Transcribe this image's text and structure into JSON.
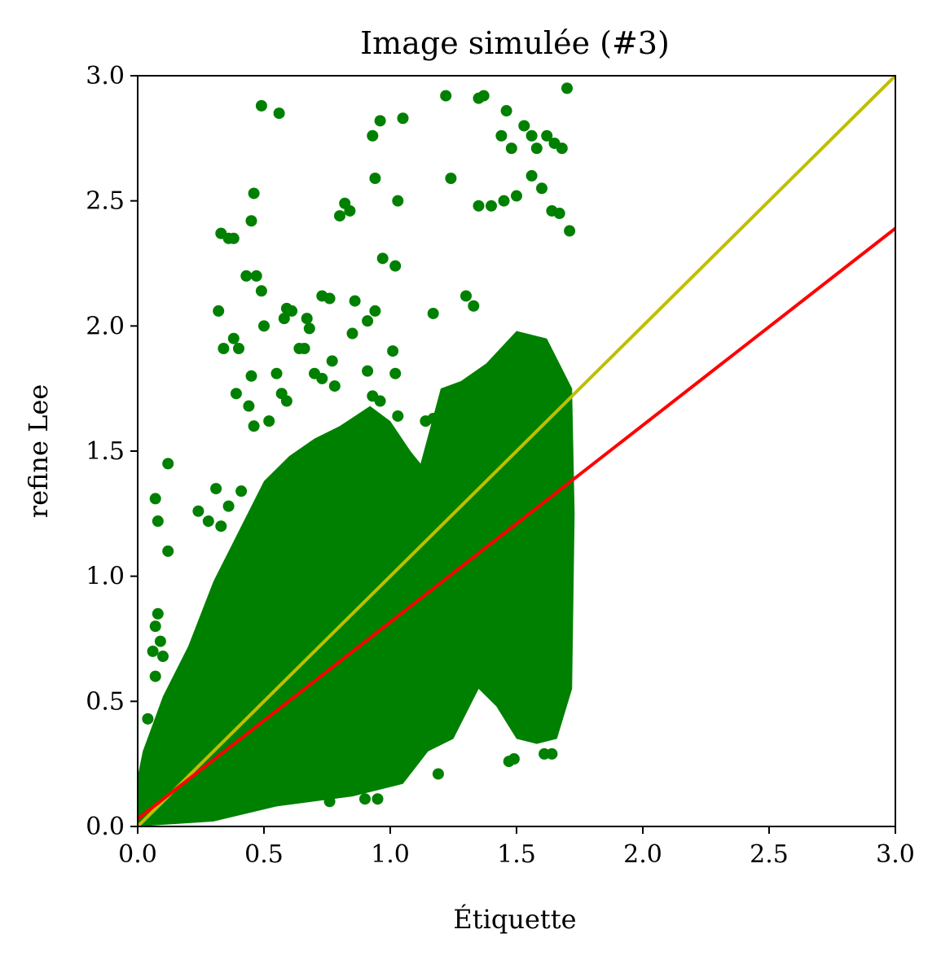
{
  "chart_data": {
    "type": "scatter",
    "title": "Image simulée (#3)",
    "xlabel": "Étiquette",
    "ylabel": "refine Lee",
    "xlim": [
      0,
      3
    ],
    "ylim": [
      0,
      3
    ],
    "x_ticks": [
      0,
      0.5,
      1,
      1.5,
      2,
      2.5,
      3
    ],
    "x_tick_labels": [
      "0.0",
      "0.5",
      "1.0",
      "1.5",
      "2.0",
      "2.5",
      "3.0"
    ],
    "y_ticks": [
      0,
      0.5,
      1,
      1.5,
      2,
      2.5,
      3
    ],
    "y_tick_labels": [
      "0.0",
      "0.5",
      "1.0",
      "1.5",
      "2.0",
      "2.5",
      "3.0"
    ],
    "grid": false,
    "legend": "none",
    "colors": {
      "points": "#008000",
      "identity_line": "#bfbf00",
      "fit_line": "#ff0000"
    },
    "lines": [
      {
        "kind": "identity",
        "color": "#bfbf00",
        "x": [
          0,
          3
        ],
        "y": [
          0,
          3
        ]
      },
      {
        "kind": "regression",
        "color": "#ff0000",
        "x": [
          0,
          3
        ],
        "y": [
          0.03,
          2.39
        ]
      }
    ],
    "points": [
      [
        0.49,
        2.88
      ],
      [
        0.56,
        2.85
      ],
      [
        1.22,
        2.92
      ],
      [
        1.35,
        2.91
      ],
      [
        1.37,
        2.92
      ],
      [
        1.7,
        2.95
      ],
      [
        1.46,
        2.86
      ],
      [
        1.53,
        2.8
      ],
      [
        1.56,
        2.76
      ],
      [
        1.62,
        2.76
      ],
      [
        1.65,
        2.73
      ],
      [
        1.68,
        2.71
      ],
      [
        1.48,
        2.71
      ],
      [
        1.44,
        2.76
      ],
      [
        1.58,
        2.71
      ],
      [
        0.96,
        2.82
      ],
      [
        1.05,
        2.83
      ],
      [
        0.93,
        2.76
      ],
      [
        0.94,
        2.59
      ],
      [
        1.03,
        2.5
      ],
      [
        1.24,
        2.59
      ],
      [
        1.35,
        2.48
      ],
      [
        1.4,
        2.48
      ],
      [
        1.45,
        2.5
      ],
      [
        1.5,
        2.52
      ],
      [
        1.56,
        2.6
      ],
      [
        1.6,
        2.55
      ],
      [
        1.64,
        2.46
      ],
      [
        1.67,
        2.45
      ],
      [
        1.71,
        2.38
      ],
      [
        0.46,
        2.53
      ],
      [
        0.45,
        2.42
      ],
      [
        0.33,
        2.37
      ],
      [
        0.36,
        2.35
      ],
      [
        0.38,
        2.35
      ],
      [
        0.8,
        2.44
      ],
      [
        0.82,
        2.49
      ],
      [
        0.84,
        2.46
      ],
      [
        0.97,
        2.27
      ],
      [
        1.02,
        2.24
      ],
      [
        0.43,
        2.2
      ],
      [
        0.47,
        2.2
      ],
      [
        0.49,
        2.14
      ],
      [
        0.32,
        2.06
      ],
      [
        0.59,
        2.07
      ],
      [
        0.61,
        2.06
      ],
      [
        0.73,
        2.12
      ],
      [
        0.76,
        2.11
      ],
      [
        0.86,
        2.1
      ],
      [
        0.91,
        2.02
      ],
      [
        0.94,
        2.06
      ],
      [
        1.17,
        2.05
      ],
      [
        1.3,
        2.12
      ],
      [
        1.33,
        2.08
      ],
      [
        0.5,
        2.0
      ],
      [
        0.58,
        2.03
      ],
      [
        0.67,
        2.03
      ],
      [
        0.68,
        1.99
      ],
      [
        0.85,
        1.97
      ],
      [
        0.38,
        1.95
      ],
      [
        0.34,
        1.91
      ],
      [
        0.4,
        1.91
      ],
      [
        0.64,
        1.91
      ],
      [
        0.66,
        1.91
      ],
      [
        0.77,
        1.86
      ],
      [
        0.91,
        1.82
      ],
      [
        1.01,
        1.9
      ],
      [
        1.02,
        1.81
      ],
      [
        0.45,
        1.8
      ],
      [
        0.55,
        1.81
      ],
      [
        0.57,
        1.73
      ],
      [
        0.39,
        1.73
      ],
      [
        0.44,
        1.68
      ],
      [
        0.46,
        1.6
      ],
      [
        0.52,
        1.62
      ],
      [
        0.59,
        1.7
      ],
      [
        0.7,
        1.81
      ],
      [
        0.73,
        1.79
      ],
      [
        0.78,
        1.76
      ],
      [
        0.93,
        1.72
      ],
      [
        0.96,
        1.7
      ],
      [
        1.03,
        1.64
      ],
      [
        1.14,
        1.62
      ],
      [
        1.17,
        1.63
      ],
      [
        0.07,
        1.31
      ],
      [
        0.08,
        1.22
      ],
      [
        0.12,
        1.45
      ],
      [
        0.12,
        1.1
      ],
      [
        0.24,
        1.26
      ],
      [
        0.28,
        1.22
      ],
      [
        0.31,
        1.35
      ],
      [
        0.33,
        1.2
      ],
      [
        0.36,
        1.28
      ],
      [
        0.41,
        1.34
      ],
      [
        0.04,
        0.43
      ],
      [
        0.06,
        0.7
      ],
      [
        0.07,
        0.8
      ],
      [
        0.07,
        0.6
      ],
      [
        0.08,
        0.85
      ],
      [
        0.09,
        0.74
      ],
      [
        0.1,
        0.68
      ],
      [
        1.47,
        0.26
      ],
      [
        1.49,
        0.27
      ],
      [
        1.61,
        0.29
      ],
      [
        1.64,
        0.29
      ],
      [
        1.19,
        0.21
      ],
      [
        1.12,
        0.35
      ],
      [
        0.95,
        0.11
      ],
      [
        0.9,
        0.11
      ],
      [
        0.76,
        0.1
      ]
    ]
  }
}
